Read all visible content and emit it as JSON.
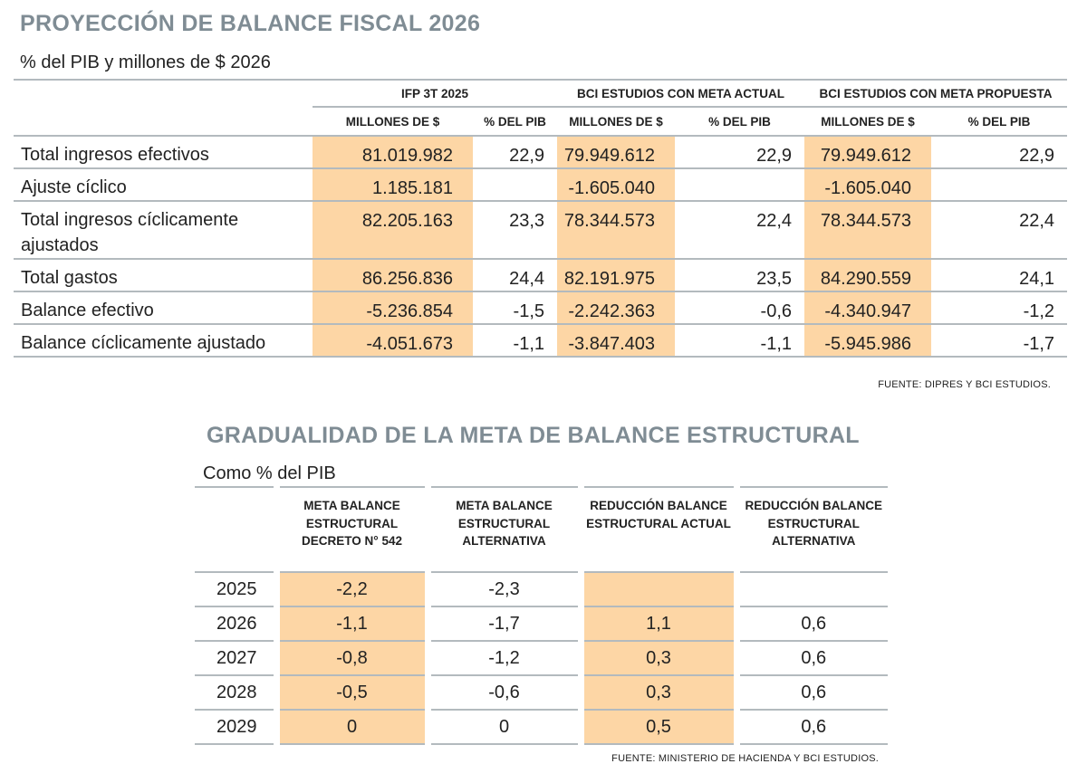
{
  "fiscal": {
    "title": "PROYECCIÓN DE BALANCE FISCAL 2026",
    "subtitle": "% del PIB y millones de $ 2026",
    "groups": [
      "IFP 3T 2025",
      "BCI ESTUDIOS CON META ACTUAL",
      "BCI ESTUDIOS CON META PROPUESTA"
    ],
    "subheaders": [
      "MILLONES DE $",
      "% DEL PIB",
      "MILLONES DE $",
      "% DEL PIB",
      "MILLONES DE $",
      "% DEL PIB"
    ],
    "rows": [
      {
        "label": "Total ingresos efectivos",
        "values": [
          "81.019.982",
          "22,9",
          "79.949.612",
          "22,9",
          "79.949.612",
          "22,9"
        ]
      },
      {
        "label": "Ajuste cíclico",
        "values": [
          "1.185.181",
          "",
          "-1.605.040",
          "",
          "-1.605.040",
          ""
        ]
      },
      {
        "label": "Total ingresos cíclicamente ajustados",
        "values": [
          "82.205.163",
          "23,3",
          "78.344.573",
          "22,4",
          "78.344.573",
          "22,4"
        ]
      },
      {
        "label": "Total gastos",
        "values": [
          "86.256.836",
          "24,4",
          "82.191.975",
          "23,5",
          "84.290.559",
          "24,1"
        ]
      },
      {
        "label": "Balance efectivo",
        "values": [
          "-5.236.854",
          "-1,5",
          "-2.242.363",
          "-0,6",
          "-4.340.947",
          "-1,2"
        ]
      },
      {
        "label": "Balance cíclicamente ajustado",
        "values": [
          "-4.051.673",
          "-1,1",
          "-3.847.403",
          "-1,1",
          "-5.945.986",
          "-1,7"
        ]
      }
    ],
    "source": "FUENTE: DIPRES Y BCI ESTUDIOS.",
    "highlight_color": "#fdd6a5"
  },
  "gradual": {
    "title": "GRADUALIDAD DE LA META DE BALANCE ESTRUCTURAL",
    "subtitle": "Como % del PIB",
    "headers": [
      "META BALANCE ESTRUCTURAL DECRETO N° 542",
      "META BALANCE ESTRUCTURAL ALTERNATIVA",
      "REDUCCIÓN BALANCE ESTRUCTURAL ACTUAL",
      "REDUCCIÓN BALANCE ESTRUCTURAL ALTERNATIVA"
    ],
    "rows": [
      {
        "year": "2025",
        "values": [
          "-2,2",
          "-2,3",
          "",
          ""
        ]
      },
      {
        "year": "2026",
        "values": [
          "-1,1",
          "-1,7",
          "1,1",
          "0,6"
        ]
      },
      {
        "year": "2027",
        "values": [
          "-0,8",
          "-1,2",
          "0,3",
          "0,6"
        ]
      },
      {
        "year": "2028",
        "values": [
          "-0,5",
          "-0,6",
          "0,3",
          "0,6"
        ]
      },
      {
        "year": "2029",
        "values": [
          "0",
          "0",
          "0,5",
          "0,6"
        ]
      }
    ],
    "source": "FUENTE: MINISTERIO DE HACIENDA Y BCI ESTUDIOS."
  }
}
